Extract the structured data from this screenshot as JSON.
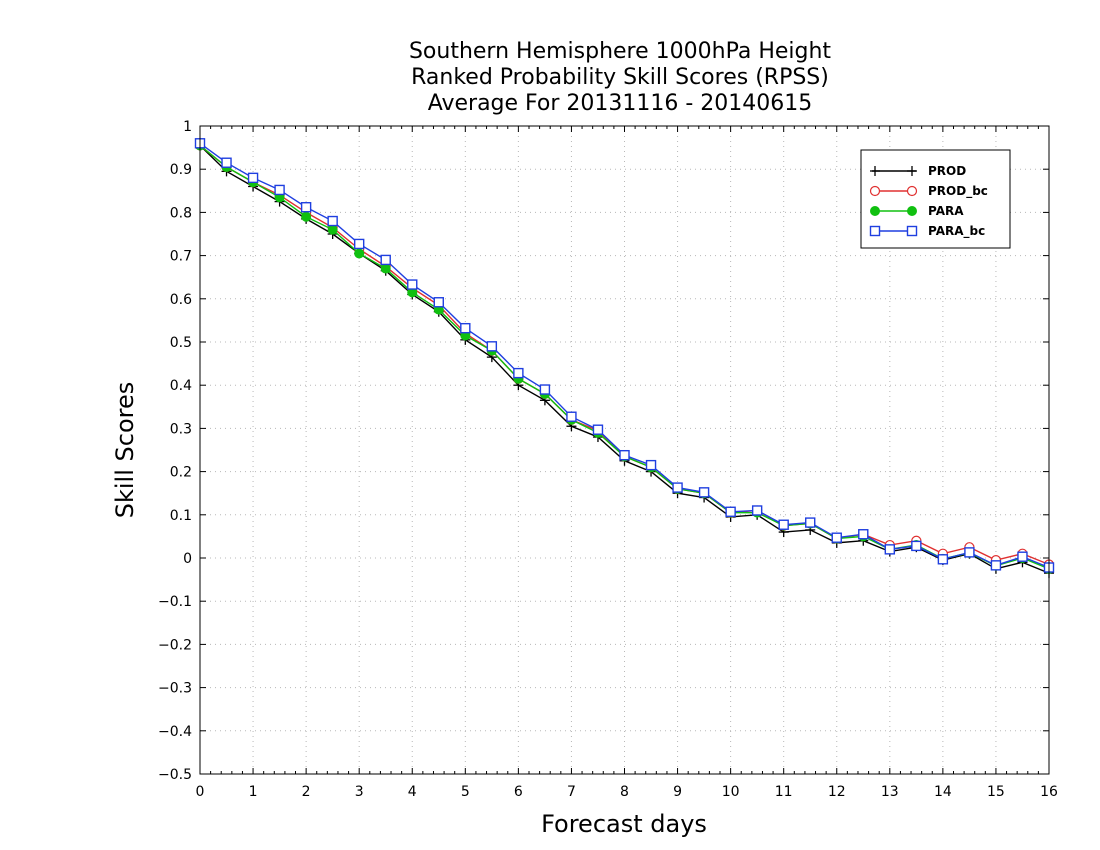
{
  "chart_data": {
    "type": "line",
    "title_lines": [
      "Southern Hemisphere 1000hPa Height",
      "Ranked Probability Skill Scores (RPSS)",
      "Average For 20131116 - 20140615"
    ],
    "xlabel": "Forecast days",
    "ylabel": "Skill Scores",
    "xlim": [
      0,
      16
    ],
    "ylim": [
      -0.5,
      1
    ],
    "x_ticks": [
      "0",
      "1",
      "2",
      "3",
      "4",
      "5",
      "6",
      "7",
      "8",
      "9",
      "10",
      "11",
      "12",
      "13",
      "14",
      "15",
      "16"
    ],
    "y_ticks": [
      "1",
      "0.9",
      "0.8",
      "0.7",
      "0.6",
      "0.5",
      "0.4",
      "0.3",
      "0.2",
      "0.1",
      "0",
      "−0.1",
      "−0.2",
      "−0.3",
      "−0.4",
      "−0.5"
    ],
    "grid": true,
    "legend_position": "top-right",
    "x": [
      0,
      0.5,
      1,
      1.5,
      2,
      2.5,
      3,
      3.5,
      4,
      4.5,
      5,
      5.5,
      6,
      6.5,
      7,
      7.5,
      8,
      8.5,
      9,
      9.5,
      10,
      10.5,
      11,
      11.5,
      12,
      12.5,
      13,
      13.5,
      14,
      14.5,
      15,
      15.5,
      16
    ],
    "series": [
      {
        "name": "PROD",
        "color": "#000000",
        "marker": "plus",
        "values": [
          0.955,
          0.895,
          0.86,
          0.825,
          0.785,
          0.75,
          0.705,
          0.665,
          0.61,
          0.57,
          0.505,
          0.465,
          0.4,
          0.365,
          0.305,
          0.28,
          0.225,
          0.2,
          0.15,
          0.14,
          0.095,
          0.1,
          0.06,
          0.065,
          0.035,
          0.04,
          0.015,
          0.025,
          -0.005,
          0.01,
          -0.025,
          -0.01,
          -0.035
        ]
      },
      {
        "name": "PROD_bc",
        "color": "#e03030",
        "marker": "circle-open",
        "values": [
          0.955,
          0.905,
          0.87,
          0.84,
          0.8,
          0.765,
          0.715,
          0.675,
          0.625,
          0.585,
          0.52,
          0.48,
          0.415,
          0.38,
          0.32,
          0.295,
          0.235,
          0.21,
          0.16,
          0.15,
          0.105,
          0.11,
          0.075,
          0.08,
          0.045,
          0.055,
          0.03,
          0.04,
          0.01,
          0.025,
          -0.005,
          0.01,
          -0.015
        ]
      },
      {
        "name": "PARA",
        "color": "#10c010",
        "marker": "circle-filled",
        "values": [
          0.955,
          0.905,
          0.87,
          0.835,
          0.79,
          0.76,
          0.705,
          0.67,
          0.615,
          0.575,
          0.515,
          0.48,
          0.415,
          0.38,
          0.32,
          0.29,
          0.235,
          0.21,
          0.16,
          0.15,
          0.105,
          0.105,
          0.075,
          0.08,
          0.045,
          0.05,
          0.02,
          0.03,
          -0.002,
          0.012,
          -0.018,
          0.0,
          -0.025
        ]
      },
      {
        "name": "PARA_bc",
        "color": "#1f3fe0",
        "marker": "square-open",
        "values": [
          0.96,
          0.915,
          0.88,
          0.852,
          0.812,
          0.78,
          0.727,
          0.69,
          0.633,
          0.592,
          0.532,
          0.49,
          0.428,
          0.39,
          0.327,
          0.297,
          0.238,
          0.215,
          0.163,
          0.152,
          0.107,
          0.11,
          0.077,
          0.082,
          0.047,
          0.055,
          0.02,
          0.028,
          -0.003,
          0.013,
          -0.017,
          0.003,
          -0.022
        ]
      }
    ]
  }
}
